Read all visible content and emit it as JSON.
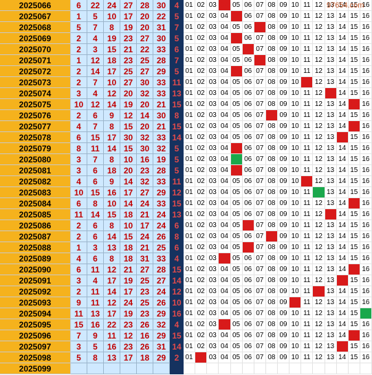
{
  "watermark": "97654.com",
  "colors": {
    "issue_bg": "#f5b21d",
    "red_bg": "#cfe9ff",
    "red_text": "#c00000",
    "blue_bg": "#15325f",
    "blue_text": "#e14b4b",
    "hit": "#d81a1a",
    "mark": "#1aa84c"
  },
  "rows": [
    {
      "issue": "2025066",
      "reds": [
        6,
        22,
        24,
        27,
        28,
        30
      ],
      "blue": 4,
      "marks": []
    },
    {
      "issue": "2025067",
      "reds": [
        1,
        5,
        10,
        17,
        20,
        22
      ],
      "blue": 5,
      "marks": []
    },
    {
      "issue": "2025068",
      "reds": [
        5,
        7,
        8,
        19,
        20,
        31
      ],
      "blue": 7,
      "marks": []
    },
    {
      "issue": "2025069",
      "reds": [
        2,
        4,
        19,
        23,
        27,
        30
      ],
      "blue": 5,
      "marks": []
    },
    {
      "issue": "2025070",
      "reds": [
        2,
        3,
        15,
        21,
        22,
        33
      ],
      "blue": 6,
      "marks": []
    },
    {
      "issue": "2025071",
      "reds": [
        1,
        12,
        18,
        23,
        25,
        28
      ],
      "blue": 7,
      "marks": []
    },
    {
      "issue": "2025072",
      "reds": [
        2,
        14,
        17,
        25,
        27,
        29
      ],
      "blue": 5,
      "marks": []
    },
    {
      "issue": "2025073",
      "reds": [
        2,
        7,
        10,
        27,
        30,
        33
      ],
      "blue": 11,
      "marks": []
    },
    {
      "issue": "2025074",
      "reds": [
        3,
        4,
        12,
        20,
        32,
        33
      ],
      "blue": 13,
      "marks": []
    },
    {
      "issue": "2025075",
      "reds": [
        10,
        12,
        14,
        19,
        20,
        21
      ],
      "blue": 15,
      "marks": []
    },
    {
      "issue": "2025076",
      "reds": [
        2,
        6,
        9,
        12,
        14,
        30
      ],
      "blue": 8,
      "marks": []
    },
    {
      "issue": "2025077",
      "reds": [
        4,
        7,
        8,
        15,
        20,
        21
      ],
      "blue": 15,
      "marks": []
    },
    {
      "issue": "2025078",
      "reds": [
        6,
        15,
        17,
        30,
        32,
        33
      ],
      "blue": 14,
      "marks": []
    },
    {
      "issue": "2025079",
      "reds": [
        8,
        11,
        14,
        15,
        30,
        32
      ],
      "blue": 5,
      "marks": []
    },
    {
      "issue": "2025080",
      "reds": [
        3,
        7,
        8,
        10,
        16,
        19
      ],
      "blue": 5,
      "marks": [
        5
      ]
    },
    {
      "issue": "2025081",
      "reds": [
        3,
        6,
        18,
        20,
        23,
        28
      ],
      "blue": 5,
      "marks": []
    },
    {
      "issue": "2025082",
      "reds": [
        4,
        6,
        9,
        14,
        32,
        33
      ],
      "blue": 11,
      "marks": []
    },
    {
      "issue": "2025083",
      "reds": [
        10,
        15,
        16,
        17,
        27,
        29
      ],
      "blue": 12,
      "marks": [
        12
      ]
    },
    {
      "issue": "2025084",
      "reds": [
        6,
        8,
        10,
        14,
        24,
        33
      ],
      "blue": 15,
      "marks": []
    },
    {
      "issue": "2025085",
      "reds": [
        11,
        14,
        15,
        18,
        21,
        24
      ],
      "blue": 13,
      "marks": []
    },
    {
      "issue": "2025086",
      "reds": [
        2,
        6,
        8,
        10,
        17,
        24
      ],
      "blue": 6,
      "marks": []
    },
    {
      "issue": "2025087",
      "reds": [
        2,
        6,
        14,
        15,
        24,
        26
      ],
      "blue": 8,
      "marks": []
    },
    {
      "issue": "2025088",
      "reds": [
        1,
        3,
        13,
        18,
        21,
        25
      ],
      "blue": 6,
      "marks": []
    },
    {
      "issue": "2025089",
      "reds": [
        4,
        6,
        8,
        18,
        31,
        33
      ],
      "blue": 4,
      "marks": []
    },
    {
      "issue": "2025090",
      "reds": [
        6,
        11,
        12,
        21,
        27,
        28
      ],
      "blue": 15,
      "marks": []
    },
    {
      "issue": "2025091",
      "reds": [
        3,
        4,
        17,
        19,
        25,
        27
      ],
      "blue": 14,
      "marks": []
    },
    {
      "issue": "2025092",
      "reds": [
        2,
        11,
        14,
        17,
        23,
        24
      ],
      "blue": 12,
      "marks": []
    },
    {
      "issue": "2025093",
      "reds": [
        9,
        11,
        12,
        24,
        25,
        26
      ],
      "blue": 10,
      "marks": []
    },
    {
      "issue": "2025094",
      "reds": [
        11,
        13,
        17,
        19,
        23,
        29
      ],
      "blue": 16,
      "marks": [
        16
      ]
    },
    {
      "issue": "2025095",
      "reds": [
        15,
        16,
        22,
        23,
        26,
        32
      ],
      "blue": 4,
      "marks": []
    },
    {
      "issue": "2025096",
      "reds": [
        7,
        9,
        11,
        12,
        16,
        29
      ],
      "blue": 15,
      "marks": []
    },
    {
      "issue": "2025097",
      "reds": [
        3,
        5,
        16,
        23,
        26,
        31
      ],
      "blue": 14,
      "marks": []
    },
    {
      "issue": "2025098",
      "reds": [
        5,
        8,
        13,
        17,
        18,
        29
      ],
      "blue": 2,
      "marks": []
    },
    {
      "issue": "2025099",
      "reds": [],
      "blue": null,
      "marks": []
    }
  ],
  "trend_numbers": [
    "01",
    "02",
    "03",
    "04",
    "05",
    "06",
    "07",
    "08",
    "09",
    "10",
    "11",
    "12",
    "13",
    "14",
    "15",
    "16"
  ]
}
